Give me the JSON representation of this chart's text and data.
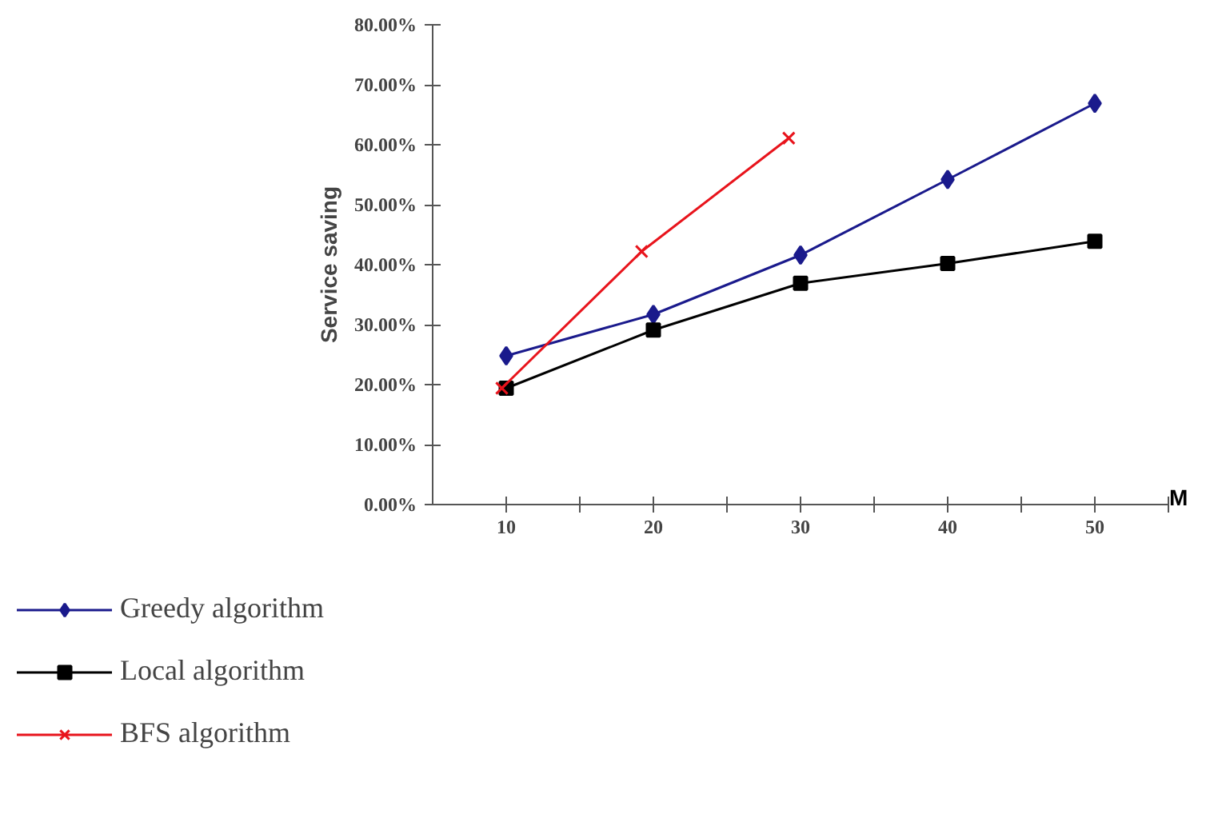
{
  "chart_data": {
    "type": "line",
    "ylabel": "Service saving",
    "xlabel": "M",
    "xlim": [
      5,
      55
    ],
    "xticks": [
      10,
      {
        "value": 15,
        "label": null
      },
      20,
      {
        "value": 25,
        "label": null
      },
      30,
      {
        "value": 35,
        "label": null
      },
      40,
      {
        "value": 45,
        "label": null
      },
      50,
      {
        "value": 55,
        "label": null
      }
    ],
    "ylim": [
      0,
      80
    ],
    "yticks": [
      {
        "value": 0,
        "label": "0.00%"
      },
      {
        "value": 10,
        "label": "10.00%"
      },
      {
        "value": 20,
        "label": "20.00%"
      },
      {
        "value": 30,
        "label": "30.00%"
      },
      {
        "value": 40,
        "label": "40.00%"
      },
      {
        "value": 50,
        "label": "50.00%"
      },
      {
        "value": 60,
        "label": "60.00%"
      },
      {
        "value": 70,
        "label": "70.00%"
      },
      {
        "value": 80,
        "label": "80.00%"
      }
    ],
    "grid": false,
    "legend": "bottom left",
    "series": [
      {
        "name": "Greedy algorithm",
        "color": "#1a1a8c",
        "marker": "diamond",
        "x": [
          10,
          20,
          30,
          40,
          50
        ],
        "values": [
          24.8,
          31.7,
          41.6,
          54.2,
          66.9
        ]
      },
      {
        "name": "Local algorithm",
        "color": "#000000",
        "marker": "square",
        "x": [
          10,
          20,
          30,
          40,
          50
        ],
        "values": [
          19.4,
          29.1,
          36.9,
          40.2,
          43.9
        ]
      },
      {
        "name": "BFS algorithm",
        "color": "#e8141c",
        "marker": "cross",
        "x": [
          9.7,
          19.2,
          29.2
        ],
        "values": [
          19.4,
          42.2,
          61.1
        ]
      }
    ]
  }
}
